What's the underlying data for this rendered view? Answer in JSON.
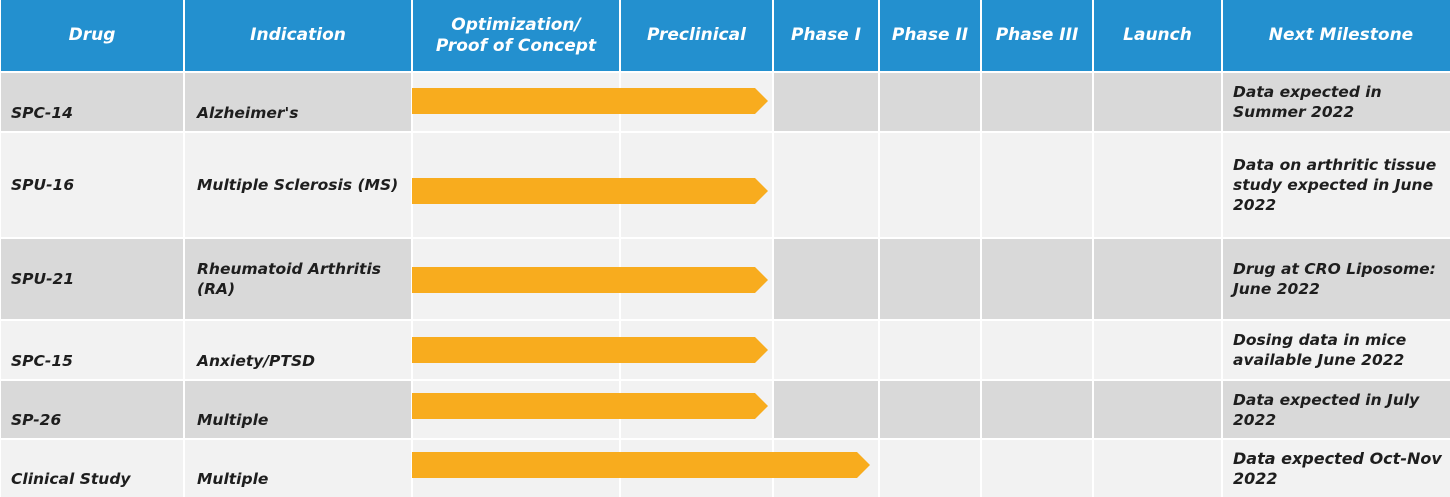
{
  "headers": [
    "Drug",
    "Indication",
    "Optimization/\nProof  of Concept",
    "Preclinical",
    "Phase I",
    "Phase II",
    "Phase III",
    "Launch",
    "Next Milestone"
  ],
  "rows": [
    {
      "drug": "SPC-14",
      "indication": "Alzheimer's",
      "stage": "Preclinical",
      "milestone": "Data expected in Summer 2022"
    },
    {
      "drug": "SPU-16",
      "indication": "Multiple Sclerosis (MS)",
      "stage": "Preclinical",
      "milestone": "Data on arthritic tissue study expected in June 2022"
    },
    {
      "drug": "SPU-21",
      "indication": "Rheumatoid Arthritis (RA)",
      "stage": "Preclinical",
      "milestone": "Drug at CRO Liposome: June 2022"
    },
    {
      "drug": "SPC-15",
      "indication": "Anxiety/PTSD",
      "stage": "Preclinical",
      "milestone": "Dosing data in mice available June 2022"
    },
    {
      "drug": "SP-26",
      "indication": "Multiple",
      "stage": "Preclinical",
      "milestone": "Data expected in July 2022"
    },
    {
      "drug": "Clinical Study",
      "indication": "Multiple",
      "stage": "Phase I",
      "milestone": "Data expected Oct-Nov 2022"
    }
  ],
  "colors": {
    "header": "#2390cf",
    "arrow": "#f8ac1e",
    "row_dark": "#d9d9d9",
    "row_light": "#f2f2f2"
  }
}
